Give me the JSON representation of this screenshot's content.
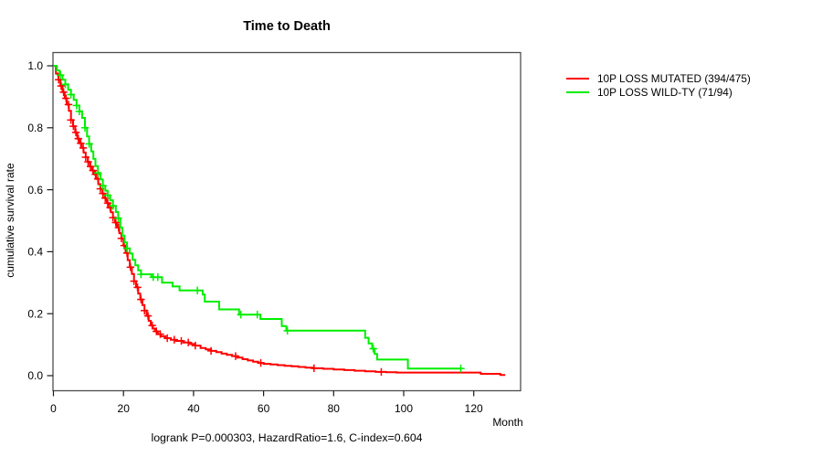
{
  "window": {
    "background": "#ffffff"
  },
  "chart_data": {
    "type": "line",
    "subtype": "kaplan-meier-step-curves",
    "title": "Time to Death",
    "xlabel": "Month",
    "ylabel": "cumulative survival rate",
    "annotation": "logrank P=0.000303, HazardRatio=1.6, C-index=0.604",
    "x_ticks": [
      0,
      20,
      40,
      60,
      80,
      100,
      120
    ],
    "y_ticks": [
      0.0,
      0.2,
      0.4,
      0.6,
      0.8,
      1.0
    ],
    "xlim": [
      0,
      133
    ],
    "ylim": [
      0.0,
      1.0
    ],
    "grid": false,
    "legend_position": "right-outside",
    "frame_color": "#4d4d4d",
    "tick_color": "#1a1a1a",
    "text_color": "#000000",
    "series": [
      {
        "name": "10P LOSS MUTATED (394/475)",
        "color": "#ff0000",
        "points": [
          [
            0,
            1.0
          ],
          [
            0.7,
            0.975
          ],
          [
            1.4,
            0.955
          ],
          [
            2,
            0.935
          ],
          [
            2.6,
            0.915
          ],
          [
            3.2,
            0.895
          ],
          [
            3.8,
            0.875
          ],
          [
            4.4,
            0.855
          ],
          [
            5,
            0.825
          ],
          [
            5.6,
            0.805
          ],
          [
            6.2,
            0.785
          ],
          [
            6.8,
            0.765
          ],
          [
            7.4,
            0.75
          ],
          [
            8,
            0.735
          ],
          [
            8.6,
            0.72
          ],
          [
            9.2,
            0.705
          ],
          [
            9.8,
            0.69
          ],
          [
            10.4,
            0.675
          ],
          [
            11,
            0.662
          ],
          [
            11.6,
            0.65
          ],
          [
            12.2,
            0.635
          ],
          [
            12.8,
            0.618
          ],
          [
            13.4,
            0.603
          ],
          [
            14,
            0.588
          ],
          [
            14.6,
            0.573
          ],
          [
            15.2,
            0.557
          ],
          [
            15.8,
            0.542
          ],
          [
            16.4,
            0.527
          ],
          [
            17,
            0.51
          ],
          [
            17.6,
            0.494
          ],
          [
            18.2,
            0.478
          ],
          [
            18.8,
            0.46
          ],
          [
            19.4,
            0.443
          ],
          [
            20,
            0.42
          ],
          [
            20.6,
            0.396
          ],
          [
            21.2,
            0.373
          ],
          [
            21.8,
            0.35
          ],
          [
            22.4,
            0.328
          ],
          [
            23,
            0.305
          ],
          [
            23.6,
            0.285
          ],
          [
            24.2,
            0.265
          ],
          [
            24.8,
            0.246
          ],
          [
            25.4,
            0.228
          ],
          [
            26,
            0.21
          ],
          [
            26.6,
            0.193
          ],
          [
            27.2,
            0.177
          ],
          [
            27.8,
            0.162
          ],
          [
            28.4,
            0.152
          ],
          [
            29,
            0.143
          ],
          [
            29.8,
            0.134
          ],
          [
            30.6,
            0.127
          ],
          [
            32,
            0.121
          ],
          [
            33.5,
            0.116
          ],
          [
            35,
            0.112
          ],
          [
            37,
            0.107
          ],
          [
            39,
            0.102
          ],
          [
            40.5,
            0.097
          ],
          [
            42,
            0.089
          ],
          [
            43.5,
            0.085
          ],
          [
            45,
            0.08
          ],
          [
            46.5,
            0.076
          ],
          [
            48,
            0.071
          ],
          [
            49.5,
            0.067
          ],
          [
            51,
            0.063
          ],
          [
            52.5,
            0.058
          ],
          [
            54,
            0.053
          ],
          [
            55.5,
            0.049
          ],
          [
            57,
            0.045
          ],
          [
            58.5,
            0.041
          ],
          [
            60,
            0.038
          ],
          [
            62,
            0.036
          ],
          [
            64,
            0.034
          ],
          [
            66,
            0.032
          ],
          [
            68,
            0.03
          ],
          [
            70,
            0.028
          ],
          [
            72,
            0.026
          ],
          [
            74,
            0.024
          ],
          [
            77,
            0.022
          ],
          [
            80,
            0.02
          ],
          [
            83,
            0.018
          ],
          [
            86,
            0.016
          ],
          [
            89,
            0.014
          ],
          [
            92,
            0.012
          ],
          [
            95,
            0.011
          ],
          [
            98,
            0.01
          ],
          [
            121,
            0.01
          ],
          [
            122,
            0.006
          ],
          [
            127,
            0.006
          ],
          [
            127.6,
            0.002
          ],
          [
            129,
            0.002
          ]
        ],
        "censor_months": [
          1.5,
          2.2,
          2.9,
          3.6,
          4.3,
          5.0,
          5.7,
          6.4,
          7.1,
          7.8,
          8.5,
          9.2,
          9.9,
          10.6,
          11.3,
          12.0,
          12.7,
          13.4,
          14.1,
          14.8,
          15.5,
          16.2,
          17.0,
          17.8,
          18.6,
          19.4,
          20.2,
          21.0,
          22.0,
          23.0,
          24.0,
          25.0,
          26.0,
          27.0,
          28.2,
          29.4,
          30.5,
          32.5,
          34.5,
          36.5,
          38.5,
          40.5,
          45.0,
          52.0,
          59.2,
          74.4,
          93.6
        ]
      },
      {
        "name": "10P LOSS WILD-TY (71/94)",
        "color": "#00ee00",
        "points": [
          [
            0,
            1.0
          ],
          [
            1,
            0.985
          ],
          [
            1.8,
            0.97
          ],
          [
            2.6,
            0.955
          ],
          [
            3.4,
            0.94
          ],
          [
            4.2,
            0.923
          ],
          [
            5,
            0.907
          ],
          [
            5.8,
            0.89
          ],
          [
            6.6,
            0.872
          ],
          [
            7.4,
            0.853
          ],
          [
            8.2,
            0.832
          ],
          [
            9,
            0.8
          ],
          [
            9.6,
            0.772
          ],
          [
            10.2,
            0.748
          ],
          [
            10.8,
            0.724
          ],
          [
            11.4,
            0.7
          ],
          [
            12,
            0.676
          ],
          [
            12.7,
            0.654
          ],
          [
            13.4,
            0.633
          ],
          [
            14.1,
            0.613
          ],
          [
            14.8,
            0.597
          ],
          [
            15.5,
            0.582
          ],
          [
            16.2,
            0.566
          ],
          [
            17,
            0.548
          ],
          [
            17.8,
            0.528
          ],
          [
            18.5,
            0.508
          ],
          [
            19.1,
            0.478
          ],
          [
            19.7,
            0.452
          ],
          [
            20.3,
            0.43
          ],
          [
            21,
            0.411
          ],
          [
            21.8,
            0.394
          ],
          [
            22.6,
            0.374
          ],
          [
            23.4,
            0.356
          ],
          [
            24.2,
            0.34
          ],
          [
            25,
            0.327
          ],
          [
            28,
            0.318
          ],
          [
            31,
            0.3
          ],
          [
            34,
            0.288
          ],
          [
            36,
            0.275
          ],
          [
            42.6,
            0.262
          ],
          [
            43.2,
            0.239
          ],
          [
            47.3,
            0.214
          ],
          [
            53,
            0.197
          ],
          [
            59.1,
            0.183
          ],
          [
            65.2,
            0.16
          ],
          [
            66.5,
            0.145
          ],
          [
            88.3,
            0.145
          ],
          [
            89,
            0.122
          ],
          [
            90,
            0.104
          ],
          [
            91,
            0.087
          ],
          [
            91.7,
            0.07
          ],
          [
            92.4,
            0.052
          ],
          [
            100.5,
            0.052
          ],
          [
            101.2,
            0.023
          ],
          [
            116.3,
            0.023
          ]
        ],
        "censor_months": [
          2.0,
          3.4,
          5.0,
          6.6,
          7.4,
          9.0,
          10.2,
          12.7,
          14.1,
          15.5,
          17.0,
          18.5,
          21.0,
          25.0,
          28.5,
          29.8,
          41.1,
          53.5,
          58.2,
          66.8,
          91.3,
          116.3
        ]
      }
    ]
  }
}
